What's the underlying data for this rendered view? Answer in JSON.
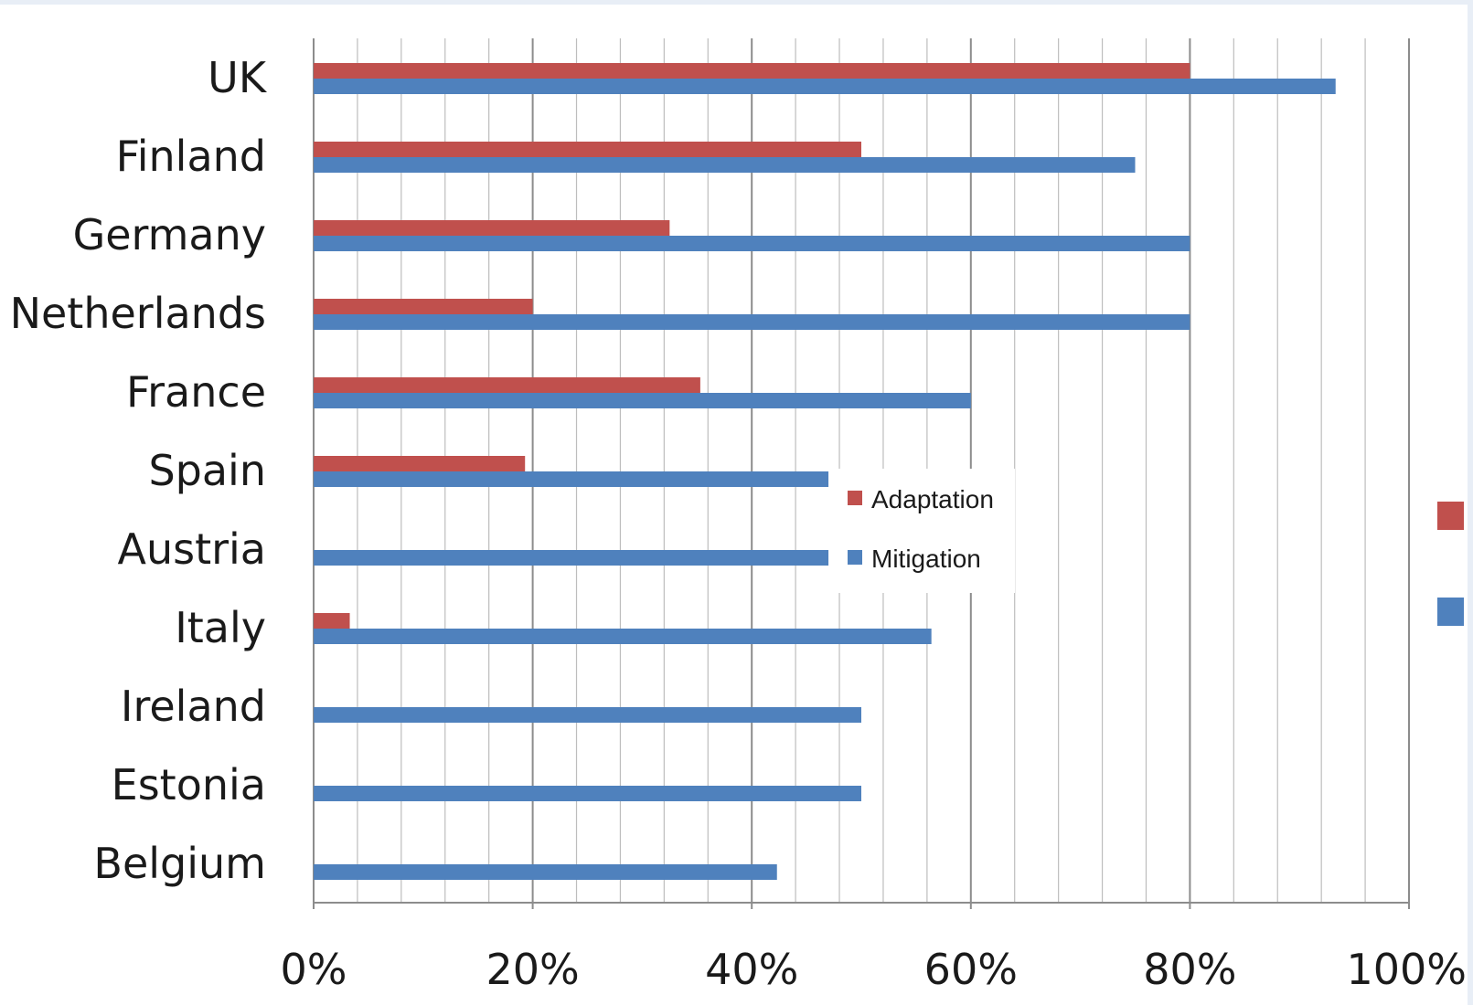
{
  "chart_data": {
    "type": "bar",
    "orientation": "horizontal",
    "categories": [
      "UK",
      "Finland",
      "Germany",
      "Netherlands",
      "France",
      "Spain",
      "Austria",
      "Italy",
      "Ireland",
      "Estonia",
      "Belgium"
    ],
    "series": [
      {
        "name": "Adaptation",
        "color": "#c0504d",
        "values": [
          80,
          50,
          32.5,
          20,
          35.3,
          19.3,
          0,
          3.3,
          0,
          0,
          0
        ]
      },
      {
        "name": "Mitigation",
        "color": "#4f81bd",
        "values": [
          93.3,
          75,
          80,
          80,
          60,
          47,
          47,
          56.4,
          50,
          50,
          42.3
        ]
      }
    ],
    "xlim": [
      0,
      100
    ],
    "x_ticks": [
      "0%",
      "20%",
      "40%",
      "60%",
      "80%",
      "100%"
    ],
    "grid": "vertical",
    "legend_position": "center-right",
    "title": "",
    "xlabel": "",
    "ylabel": ""
  }
}
